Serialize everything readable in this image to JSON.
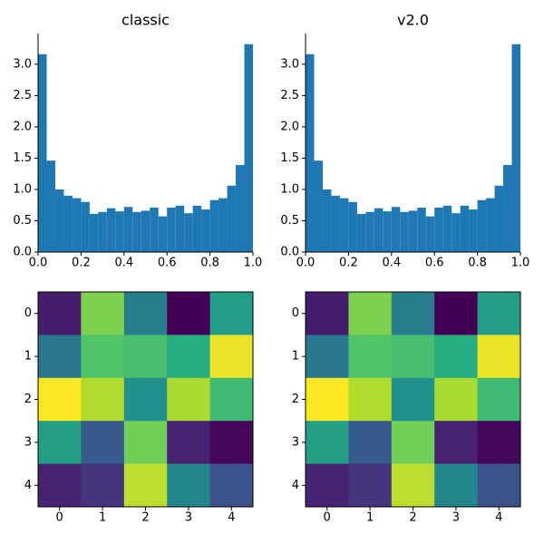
{
  "chart_data": [
    {
      "type": "histogram",
      "title": "classic",
      "color": "#1f77b4",
      "bins": [
        0,
        0.04,
        0.08,
        0.12,
        0.16,
        0.2,
        0.24,
        0.28,
        0.32,
        0.36,
        0.4,
        0.44,
        0.48,
        0.52,
        0.56,
        0.6,
        0.64,
        0.68,
        0.72,
        0.76,
        0.8,
        0.84,
        0.88,
        0.92,
        0.96,
        1
      ],
      "values": [
        3.16,
        1.46,
        1.0,
        0.9,
        0.86,
        0.8,
        0.61,
        0.64,
        0.7,
        0.65,
        0.72,
        0.64,
        0.66,
        0.71,
        0.57,
        0.71,
        0.74,
        0.62,
        0.74,
        0.68,
        0.83,
        0.86,
        1.06,
        1.39,
        3.32
      ],
      "xlim": [
        0,
        1
      ],
      "ylim": [
        0,
        3.49
      ],
      "xticks": [
        {
          "value": 0,
          "label": "0.0"
        },
        {
          "value": 0.2,
          "label": "0.2"
        },
        {
          "value": 0.4,
          "label": "0.4"
        },
        {
          "value": 0.6,
          "label": "0.6"
        },
        {
          "value": 0.8,
          "label": "0.8"
        },
        {
          "value": 1,
          "label": "1.0"
        }
      ],
      "yticks": [
        {
          "value": 0,
          "label": "0.0"
        },
        {
          "value": 0.5,
          "label": "0.5"
        },
        {
          "value": 1,
          "label": "1.0"
        },
        {
          "value": 1.5,
          "label": "1.5"
        },
        {
          "value": 2,
          "label": "2.0"
        },
        {
          "value": 2.5,
          "label": "2.5"
        },
        {
          "value": 3,
          "label": "3.0"
        }
      ]
    },
    {
      "type": "histogram",
      "title": "v2.0",
      "color": "#1f77b4",
      "bins": [
        0,
        0.04,
        0.08,
        0.12,
        0.16,
        0.2,
        0.24,
        0.28,
        0.32,
        0.36,
        0.4,
        0.44,
        0.48,
        0.52,
        0.56,
        0.6,
        0.64,
        0.68,
        0.72,
        0.76,
        0.8,
        0.84,
        0.88,
        0.92,
        0.96,
        1
      ],
      "values": [
        3.16,
        1.46,
        1.0,
        0.9,
        0.86,
        0.8,
        0.61,
        0.64,
        0.7,
        0.65,
        0.72,
        0.64,
        0.66,
        0.71,
        0.57,
        0.71,
        0.74,
        0.62,
        0.74,
        0.68,
        0.83,
        0.86,
        1.06,
        1.39,
        3.32
      ],
      "xlim": [
        0,
        1
      ],
      "ylim": [
        0,
        3.49
      ],
      "xticks": [
        {
          "value": 0,
          "label": "0.0"
        },
        {
          "value": 0.2,
          "label": "0.2"
        },
        {
          "value": 0.4,
          "label": "0.4"
        },
        {
          "value": 0.6,
          "label": "0.6"
        },
        {
          "value": 0.8,
          "label": "0.8"
        },
        {
          "value": 1,
          "label": "1.0"
        }
      ],
      "yticks": [
        {
          "value": 0,
          "label": "0.0"
        },
        {
          "value": 0.5,
          "label": "0.5"
        },
        {
          "value": 1,
          "label": "1.0"
        },
        {
          "value": 1.5,
          "label": "1.5"
        },
        {
          "value": 2,
          "label": "2.0"
        },
        {
          "value": 2.5,
          "label": "2.5"
        },
        {
          "value": 3,
          "label": "3.0"
        }
      ]
    },
    {
      "type": "heatmap",
      "colormap": "viridis",
      "values": [
        [
          0.08,
          0.8,
          0.42,
          0.0,
          0.55
        ],
        [
          0.4,
          0.72,
          0.7,
          0.62,
          0.97
        ],
        [
          1.0,
          0.88,
          0.5,
          0.87,
          0.68
        ],
        [
          0.56,
          0.28,
          0.78,
          0.1,
          0.02
        ],
        [
          0.1,
          0.15,
          0.9,
          0.45,
          0.25
        ]
      ],
      "xlim": [
        -0.5,
        4.5
      ],
      "ylim": [
        4.5,
        -0.5
      ],
      "xticks": [
        0,
        1,
        2,
        3,
        4
      ],
      "yticks": [
        0,
        1,
        2,
        3,
        4
      ]
    },
    {
      "type": "heatmap",
      "colormap": "viridis",
      "values": [
        [
          0.08,
          0.8,
          0.42,
          0.0,
          0.55
        ],
        [
          0.4,
          0.72,
          0.7,
          0.62,
          0.97
        ],
        [
          1.0,
          0.88,
          0.5,
          0.87,
          0.68
        ],
        [
          0.56,
          0.28,
          0.78,
          0.1,
          0.02
        ],
        [
          0.1,
          0.15,
          0.9,
          0.45,
          0.25
        ]
      ],
      "xlim": [
        -0.5,
        4.5
      ],
      "ylim": [
        4.5,
        -0.5
      ],
      "xticks": [
        0,
        1,
        2,
        3,
        4
      ],
      "yticks": [
        0,
        1,
        2,
        3,
        4
      ]
    }
  ]
}
